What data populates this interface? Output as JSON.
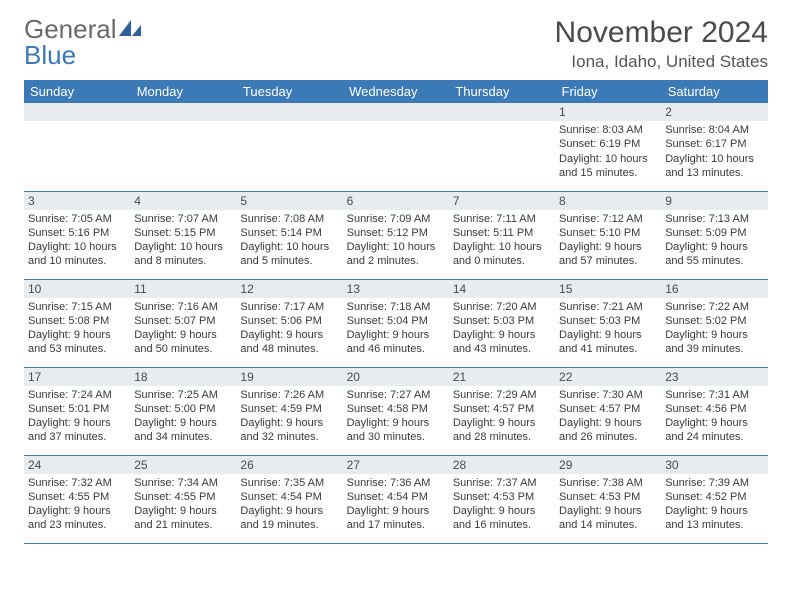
{
  "logo": {
    "word1": "General",
    "word2": "Blue"
  },
  "title": "November 2024",
  "location": "Iona, Idaho, United States",
  "colors": {
    "header_bg": "#3b79b7",
    "header_text": "#ffffff",
    "daynum_bg": "#e8ecef",
    "rule": "#3b79b7",
    "text": "#3a3a3a",
    "page_bg": "#ffffff"
  },
  "weekdays": [
    "Sunday",
    "Monday",
    "Tuesday",
    "Wednesday",
    "Thursday",
    "Friday",
    "Saturday"
  ],
  "weeks": [
    [
      {
        "n": "",
        "lines": [
          "",
          "",
          "",
          ""
        ]
      },
      {
        "n": "",
        "lines": [
          "",
          "",
          "",
          ""
        ]
      },
      {
        "n": "",
        "lines": [
          "",
          "",
          "",
          ""
        ]
      },
      {
        "n": "",
        "lines": [
          "",
          "",
          "",
          ""
        ]
      },
      {
        "n": "",
        "lines": [
          "",
          "",
          "",
          ""
        ]
      },
      {
        "n": "1",
        "lines": [
          "Sunrise: 8:03 AM",
          "Sunset: 6:19 PM",
          "Daylight: 10 hours",
          "and 15 minutes."
        ]
      },
      {
        "n": "2",
        "lines": [
          "Sunrise: 8:04 AM",
          "Sunset: 6:17 PM",
          "Daylight: 10 hours",
          "and 13 minutes."
        ]
      }
    ],
    [
      {
        "n": "3",
        "lines": [
          "Sunrise: 7:05 AM",
          "Sunset: 5:16 PM",
          "Daylight: 10 hours",
          "and 10 minutes."
        ]
      },
      {
        "n": "4",
        "lines": [
          "Sunrise: 7:07 AM",
          "Sunset: 5:15 PM",
          "Daylight: 10 hours",
          "and 8 minutes."
        ]
      },
      {
        "n": "5",
        "lines": [
          "Sunrise: 7:08 AM",
          "Sunset: 5:14 PM",
          "Daylight: 10 hours",
          "and 5 minutes."
        ]
      },
      {
        "n": "6",
        "lines": [
          "Sunrise: 7:09 AM",
          "Sunset: 5:12 PM",
          "Daylight: 10 hours",
          "and 2 minutes."
        ]
      },
      {
        "n": "7",
        "lines": [
          "Sunrise: 7:11 AM",
          "Sunset: 5:11 PM",
          "Daylight: 10 hours",
          "and 0 minutes."
        ]
      },
      {
        "n": "8",
        "lines": [
          "Sunrise: 7:12 AM",
          "Sunset: 5:10 PM",
          "Daylight: 9 hours",
          "and 57 minutes."
        ]
      },
      {
        "n": "9",
        "lines": [
          "Sunrise: 7:13 AM",
          "Sunset: 5:09 PM",
          "Daylight: 9 hours",
          "and 55 minutes."
        ]
      }
    ],
    [
      {
        "n": "10",
        "lines": [
          "Sunrise: 7:15 AM",
          "Sunset: 5:08 PM",
          "Daylight: 9 hours",
          "and 53 minutes."
        ]
      },
      {
        "n": "11",
        "lines": [
          "Sunrise: 7:16 AM",
          "Sunset: 5:07 PM",
          "Daylight: 9 hours",
          "and 50 minutes."
        ]
      },
      {
        "n": "12",
        "lines": [
          "Sunrise: 7:17 AM",
          "Sunset: 5:06 PM",
          "Daylight: 9 hours",
          "and 48 minutes."
        ]
      },
      {
        "n": "13",
        "lines": [
          "Sunrise: 7:18 AM",
          "Sunset: 5:04 PM",
          "Daylight: 9 hours",
          "and 46 minutes."
        ]
      },
      {
        "n": "14",
        "lines": [
          "Sunrise: 7:20 AM",
          "Sunset: 5:03 PM",
          "Daylight: 9 hours",
          "and 43 minutes."
        ]
      },
      {
        "n": "15",
        "lines": [
          "Sunrise: 7:21 AM",
          "Sunset: 5:03 PM",
          "Daylight: 9 hours",
          "and 41 minutes."
        ]
      },
      {
        "n": "16",
        "lines": [
          "Sunrise: 7:22 AM",
          "Sunset: 5:02 PM",
          "Daylight: 9 hours",
          "and 39 minutes."
        ]
      }
    ],
    [
      {
        "n": "17",
        "lines": [
          "Sunrise: 7:24 AM",
          "Sunset: 5:01 PM",
          "Daylight: 9 hours",
          "and 37 minutes."
        ]
      },
      {
        "n": "18",
        "lines": [
          "Sunrise: 7:25 AM",
          "Sunset: 5:00 PM",
          "Daylight: 9 hours",
          "and 34 minutes."
        ]
      },
      {
        "n": "19",
        "lines": [
          "Sunrise: 7:26 AM",
          "Sunset: 4:59 PM",
          "Daylight: 9 hours",
          "and 32 minutes."
        ]
      },
      {
        "n": "20",
        "lines": [
          "Sunrise: 7:27 AM",
          "Sunset: 4:58 PM",
          "Daylight: 9 hours",
          "and 30 minutes."
        ]
      },
      {
        "n": "21",
        "lines": [
          "Sunrise: 7:29 AM",
          "Sunset: 4:57 PM",
          "Daylight: 9 hours",
          "and 28 minutes."
        ]
      },
      {
        "n": "22",
        "lines": [
          "Sunrise: 7:30 AM",
          "Sunset: 4:57 PM",
          "Daylight: 9 hours",
          "and 26 minutes."
        ]
      },
      {
        "n": "23",
        "lines": [
          "Sunrise: 7:31 AM",
          "Sunset: 4:56 PM",
          "Daylight: 9 hours",
          "and 24 minutes."
        ]
      }
    ],
    [
      {
        "n": "24",
        "lines": [
          "Sunrise: 7:32 AM",
          "Sunset: 4:55 PM",
          "Daylight: 9 hours",
          "and 23 minutes."
        ]
      },
      {
        "n": "25",
        "lines": [
          "Sunrise: 7:34 AM",
          "Sunset: 4:55 PM",
          "Daylight: 9 hours",
          "and 21 minutes."
        ]
      },
      {
        "n": "26",
        "lines": [
          "Sunrise: 7:35 AM",
          "Sunset: 4:54 PM",
          "Daylight: 9 hours",
          "and 19 minutes."
        ]
      },
      {
        "n": "27",
        "lines": [
          "Sunrise: 7:36 AM",
          "Sunset: 4:54 PM",
          "Daylight: 9 hours",
          "and 17 minutes."
        ]
      },
      {
        "n": "28",
        "lines": [
          "Sunrise: 7:37 AM",
          "Sunset: 4:53 PM",
          "Daylight: 9 hours",
          "and 16 minutes."
        ]
      },
      {
        "n": "29",
        "lines": [
          "Sunrise: 7:38 AM",
          "Sunset: 4:53 PM",
          "Daylight: 9 hours",
          "and 14 minutes."
        ]
      },
      {
        "n": "30",
        "lines": [
          "Sunrise: 7:39 AM",
          "Sunset: 4:52 PM",
          "Daylight: 9 hours",
          "and 13 minutes."
        ]
      }
    ]
  ]
}
